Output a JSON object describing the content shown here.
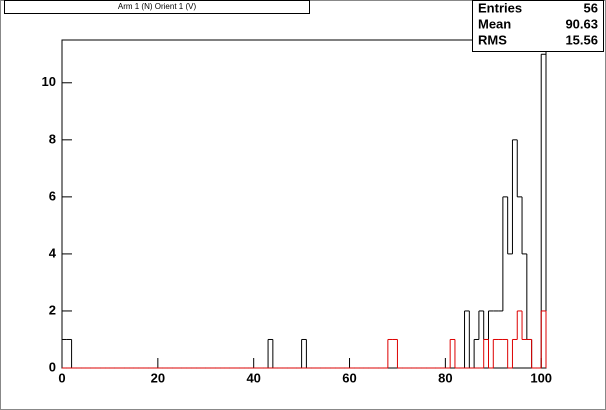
{
  "chart_data": {
    "type": "histogram",
    "title": "Arm 1 (N) Orient 1 (V)",
    "bins": [
      0,
      1,
      2,
      3,
      4,
      5,
      6,
      7,
      8,
      9,
      10,
      11,
      12,
      13,
      14,
      15,
      16,
      17,
      18,
      19,
      20,
      21,
      22,
      23,
      24,
      25,
      26,
      27,
      28,
      29,
      30,
      31,
      32,
      33,
      34,
      35,
      36,
      37,
      38,
      39,
      40,
      41,
      42,
      43,
      44,
      45,
      46,
      47,
      48,
      49,
      50,
      51,
      52,
      53,
      54,
      55,
      56,
      57,
      58,
      59,
      60,
      61,
      62,
      63,
      64,
      65,
      66,
      67,
      68,
      69,
      70,
      71,
      72,
      73,
      74,
      75,
      76,
      77,
      78,
      79,
      80,
      81,
      82,
      83,
      84,
      85,
      86,
      87,
      88,
      89,
      90,
      91,
      92,
      93,
      94,
      95,
      96,
      97,
      98,
      99,
      100,
      101
    ],
    "series": [
      {
        "color": "#000000",
        "values": [
          1,
          1,
          0,
          0,
          0,
          0,
          0,
          0,
          0,
          0,
          0,
          0,
          0,
          0,
          0,
          0,
          0,
          0,
          0,
          0,
          0,
          0,
          0,
          0,
          0,
          0,
          0,
          0,
          0,
          0,
          0,
          0,
          0,
          0,
          0,
          0,
          0,
          0,
          0,
          0,
          0,
          0,
          0,
          1,
          0,
          0,
          0,
          0,
          0,
          0,
          1,
          0,
          0,
          0,
          0,
          0,
          0,
          0,
          0,
          0,
          0,
          0,
          0,
          0,
          0,
          0,
          0,
          0,
          0,
          0,
          0,
          0,
          0,
          0,
          0,
          0,
          0,
          0,
          0,
          0,
          0,
          0,
          0,
          0,
          2,
          0,
          1,
          2,
          1,
          2,
          2,
          2,
          6,
          4,
          8,
          6,
          4,
          1,
          0,
          0,
          11
        ]
      },
      {
        "color": "#dd0000",
        "values": [
          0,
          0,
          0,
          0,
          0,
          0,
          0,
          0,
          0,
          0,
          0,
          0,
          0,
          0,
          0,
          0,
          0,
          0,
          0,
          0,
          0,
          0,
          0,
          0,
          0,
          0,
          0,
          0,
          0,
          0,
          0,
          0,
          0,
          0,
          0,
          0,
          0,
          0,
          0,
          0,
          0,
          0,
          0,
          0,
          0,
          0,
          0,
          0,
          0,
          0,
          0,
          0,
          0,
          0,
          0,
          0,
          0,
          0,
          0,
          0,
          0,
          0,
          0,
          0,
          0,
          0,
          0,
          0,
          1,
          1,
          0,
          0,
          0,
          0,
          0,
          0,
          0,
          0,
          0,
          0,
          0,
          1,
          0,
          0,
          0,
          0,
          0,
          0,
          1,
          0,
          1,
          1,
          1,
          0,
          1,
          2,
          1,
          1,
          0,
          0,
          2
        ]
      }
    ],
    "xlim": [
      0,
      101
    ],
    "ylim": [
      0,
      11.5
    ],
    "xticks": [
      0,
      20,
      40,
      60,
      80,
      100
    ],
    "yticks": [
      0,
      2,
      4,
      6,
      8,
      10
    ],
    "stats": {
      "labels": [
        "Entries",
        "Mean",
        "RMS"
      ],
      "values": [
        56,
        90.63,
        15.56
      ]
    }
  }
}
